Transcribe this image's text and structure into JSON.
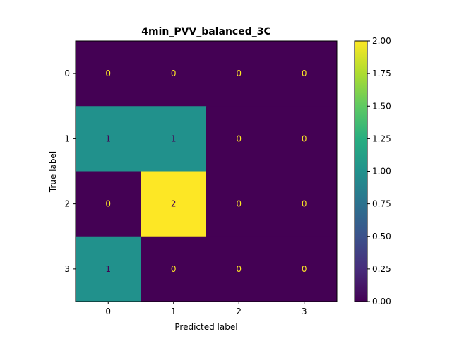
{
  "chart_data": {
    "type": "heatmap",
    "title": "4min_PVV_balanced_3C",
    "xlabel": "Predicted label",
    "ylabel": "True label",
    "x_categories": [
      "0",
      "1",
      "2",
      "3"
    ],
    "y_categories": [
      "0",
      "1",
      "2",
      "3"
    ],
    "values": [
      [
        0,
        0,
        0,
        0
      ],
      [
        1,
        1,
        0,
        0
      ],
      [
        0,
        2,
        0,
        0
      ],
      [
        1,
        0,
        0,
        0
      ]
    ],
    "colorscale": "viridis",
    "zlim": [
      0,
      2
    ],
    "colorbar_ticks": [
      "0.00",
      "0.25",
      "0.50",
      "0.75",
      "1.00",
      "1.25",
      "1.50",
      "1.75",
      "2.00"
    ],
    "colors": {
      "low": "#440154",
      "mid": "#21918c",
      "high": "#fde725"
    }
  }
}
